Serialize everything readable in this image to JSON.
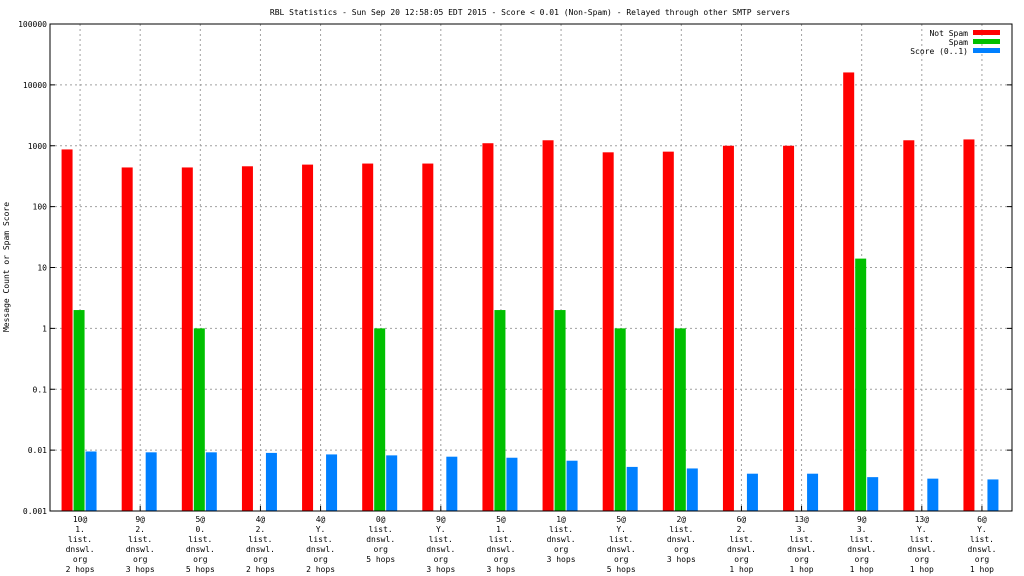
{
  "chart_data": {
    "type": "bar",
    "title": "RBL Statistics - Sun Sep 20 12:58:05 EDT 2015 - Score < 0.01 (Non-Spam) - Relayed through other SMTP servers",
    "xlabel": "",
    "ylabel": "Message Count or Spam Score",
    "yscale": "log",
    "ylim": [
      0.001,
      100000
    ],
    "yticks": [
      "0.001",
      "0.01",
      "0.1",
      "1",
      "10",
      "100",
      "1000",
      "10000",
      "100000"
    ],
    "grid": true,
    "legend_position": "top-right",
    "categories": [
      [
        "10@",
        "1.",
        "list.",
        "dnswl.",
        "org",
        "2 hops"
      ],
      [
        "9@",
        "2.",
        "list.",
        "dnswl.",
        "org",
        "3 hops"
      ],
      [
        "5@",
        "0.",
        "list.",
        "dnswl.",
        "org",
        "5 hops"
      ],
      [
        "4@",
        "2.",
        "list.",
        "dnswl.",
        "org",
        "2 hops"
      ],
      [
        "4@",
        "Y.",
        "list.",
        "dnswl.",
        "org",
        "2 hops"
      ],
      [
        "0@",
        "list.",
        "dnswl.",
        "org",
        "5 hops"
      ],
      [
        "9@",
        "Y.",
        "list.",
        "dnswl.",
        "org",
        "3 hops"
      ],
      [
        "5@",
        "1.",
        "list.",
        "dnswl.",
        "org",
        "3 hops"
      ],
      [
        "1@",
        "list.",
        "dnswl.",
        "org",
        "3 hops"
      ],
      [
        "5@",
        "Y.",
        "list.",
        "dnswl.",
        "org",
        "5 hops"
      ],
      [
        "2@",
        "list.",
        "dnswl.",
        "org",
        "3 hops"
      ],
      [
        "6@",
        "2.",
        "list.",
        "dnswl.",
        "org",
        "1 hop"
      ],
      [
        "13@",
        "3.",
        "list.",
        "dnswl.",
        "org",
        "1 hop"
      ],
      [
        "9@",
        "3.",
        "list.",
        "dnswl.",
        "org",
        "1 hop"
      ],
      [
        "13@",
        "Y.",
        "list.",
        "dnswl.",
        "org",
        "1 hop"
      ],
      [
        "6@",
        "Y.",
        "list.",
        "dnswl.",
        "org",
        "1 hop"
      ]
    ],
    "series": [
      {
        "name": "Not Spam",
        "color": "#ff0000",
        "values": [
          870,
          440,
          440,
          460,
          490,
          510,
          510,
          1100,
          1230,
          780,
          800,
          1000,
          1000,
          16000,
          1230,
          1270
        ]
      },
      {
        "name": "Spam",
        "color": "#00c000",
        "values": [
          2,
          null,
          1,
          null,
          null,
          1,
          null,
          2,
          2,
          1,
          1,
          null,
          null,
          14,
          null,
          null
        ]
      },
      {
        "name": "Score (0..1)",
        "color": "#0080ff",
        "values": [
          0.0095,
          0.0092,
          0.0092,
          0.009,
          0.0085,
          0.0082,
          0.0078,
          0.0075,
          0.0067,
          0.0053,
          0.005,
          0.0041,
          0.0041,
          0.0036,
          0.0034,
          0.0033
        ]
      }
    ]
  }
}
